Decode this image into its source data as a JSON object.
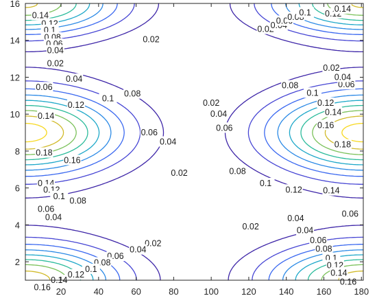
{
  "chart_data": {
    "type": "contour",
    "title": "",
    "xlabel": "",
    "ylabel": "",
    "xlim": [
      1,
      181
    ],
    "ylim": [
      1,
      16
    ],
    "grid": false,
    "x_ticks": [
      20,
      40,
      60,
      80,
      100,
      120,
      140,
      160,
      180
    ],
    "y_ticks": [
      2,
      4,
      6,
      8,
      10,
      12,
      14,
      16
    ],
    "levels": [
      0.02,
      0.04,
      0.06,
      0.08,
      0.1,
      0.12,
      0.14,
      0.16,
      0.18
    ],
    "level_colors": [
      "#3e26a8",
      "#4746d4",
      "#3a68f0",
      "#2c8ae6",
      "#1ea8c9",
      "#2bbb9b",
      "#7bc15a",
      "#d1ba2a",
      "#f7d81f"
    ],
    "colormap": "parula",
    "field": {
      "description_source": "values read from contour labels",
      "x_min_band": [
        85,
        100
      ],
      "peak_left": {
        "x": 1,
        "y": 9,
        "value": 0.19
      },
      "peak_right": {
        "x": 181,
        "y": 9,
        "value": 0.19
      },
      "edge_maxima_y": [
        1,
        16
      ]
    },
    "labels": [
      {
        "text": "0.14",
        "x": 9,
        "y": 15.35
      },
      {
        "text": "0.12",
        "x": 14,
        "y": 14.9
      },
      {
        "text": "0.1",
        "x": 14,
        "y": 14.55
      },
      {
        "text": "0.08",
        "x": 15.5,
        "y": 14.15
      },
      {
        "text": "0.06",
        "x": 16.5,
        "y": 13.8
      },
      {
        "text": "0.04",
        "x": 17,
        "y": 13.45
      },
      {
        "text": "0.02",
        "x": 17,
        "y": 12.75
      },
      {
        "text": "0.04",
        "x": 27,
        "y": 11.9
      },
      {
        "text": "0.06",
        "x": 11,
        "y": 11.45
      },
      {
        "text": "0.12",
        "x": 28,
        "y": 10.5
      },
      {
        "text": "0.14",
        "x": 12,
        "y": 9.9
      },
      {
        "text": "0.1",
        "x": 45,
        "y": 10.85
      },
      {
        "text": "0.08",
        "x": 58,
        "y": 11.1
      },
      {
        "text": "0.06",
        "x": 67,
        "y": 9.0
      },
      {
        "text": "0.04",
        "x": 77,
        "y": 8.5
      },
      {
        "text": "0.02",
        "x": 83,
        "y": 6.8
      },
      {
        "text": "0.18",
        "x": 11,
        "y": 7.9
      },
      {
        "text": "0.16",
        "x": 26,
        "y": 7.5
      },
      {
        "text": "0.14",
        "x": 12,
        "y": 6.25
      },
      {
        "text": "0.12",
        "x": 15,
        "y": 5.9
      },
      {
        "text": "0.1",
        "x": 19,
        "y": 5.55
      },
      {
        "text": "0.08",
        "x": 29,
        "y": 5.3
      },
      {
        "text": "0.06",
        "x": 12,
        "y": 4.85
      },
      {
        "text": "0.04",
        "x": 16,
        "y": 4.4
      },
      {
        "text": "0.02",
        "x": 68,
        "y": 14.05
      },
      {
        "text": "0.02",
        "x": 69,
        "y": 3.0
      },
      {
        "text": "0.04",
        "x": 61,
        "y": 2.65
      },
      {
        "text": "0.06",
        "x": 49,
        "y": 2.3
      },
      {
        "text": "0.08",
        "x": 42,
        "y": 1.95
      },
      {
        "text": "0.1",
        "x": 36,
        "y": 1.6
      },
      {
        "text": "0.12",
        "x": 28,
        "y": 1.3
      },
      {
        "text": "0.14",
        "x": 19,
        "y": 1.0
      },
      {
        "text": "0.16",
        "x": 10,
        "y": 0.6
      },
      {
        "text": "0.02",
        "x": 100,
        "y": 10.6
      },
      {
        "text": "0.04",
        "x": 104,
        "y": 10.0
      },
      {
        "text": "0.06",
        "x": 107,
        "y": 9.25
      },
      {
        "text": "0.08",
        "x": 114,
        "y": 6.9
      },
      {
        "text": "0.1",
        "x": 129,
        "y": 6.25
      },
      {
        "text": "0.12",
        "x": 144,
        "y": 5.9
      },
      {
        "text": "0.14",
        "x": 164,
        "y": 5.85
      },
      {
        "text": "0.16",
        "x": 161,
        "y": 9.4
      },
      {
        "text": "0.18",
        "x": 170,
        "y": 8.35
      },
      {
        "text": "0.14",
        "x": 165,
        "y": 10.1
      },
      {
        "text": "0.12",
        "x": 161,
        "y": 10.6
      },
      {
        "text": "0.1",
        "x": 154,
        "y": 11.15
      },
      {
        "text": "0.08",
        "x": 142,
        "y": 11.55
      },
      {
        "text": "0.06",
        "x": 172,
        "y": 11.6
      },
      {
        "text": "0.04",
        "x": 170,
        "y": 12.0
      },
      {
        "text": "0.02",
        "x": 164,
        "y": 12.5
      },
      {
        "text": "0.04",
        "x": 150,
        "y": 3.7
      },
      {
        "text": "0.06",
        "x": 157,
        "y": 3.15
      },
      {
        "text": "0.08",
        "x": 160,
        "y": 2.7
      },
      {
        "text": "0.1",
        "x": 164,
        "y": 2.2
      },
      {
        "text": "0.12",
        "x": 166,
        "y": 1.8
      },
      {
        "text": "0.14",
        "x": 168,
        "y": 1.4
      },
      {
        "text": "0.16",
        "x": 173,
        "y": 0.9
      },
      {
        "text": "0.04",
        "x": 145,
        "y": 4.35
      },
      {
        "text": "0.06",
        "x": 174,
        "y": 4.6
      },
      {
        "text": "0.02",
        "x": 121,
        "y": 3.9
      },
      {
        "text": "0.02",
        "x": 129,
        "y": 14.6
      },
      {
        "text": "0.04",
        "x": 136,
        "y": 14.8
      },
      {
        "text": "0.06",
        "x": 139,
        "y": 15.05
      },
      {
        "text": "0.08",
        "x": 145,
        "y": 15.25
      },
      {
        "text": "0.1",
        "x": 150,
        "y": 15.5
      },
      {
        "text": "0.12",
        "x": 165,
        "y": 15.45
      },
      {
        "text": "0.14",
        "x": 170,
        "y": 15.7
      }
    ]
  }
}
